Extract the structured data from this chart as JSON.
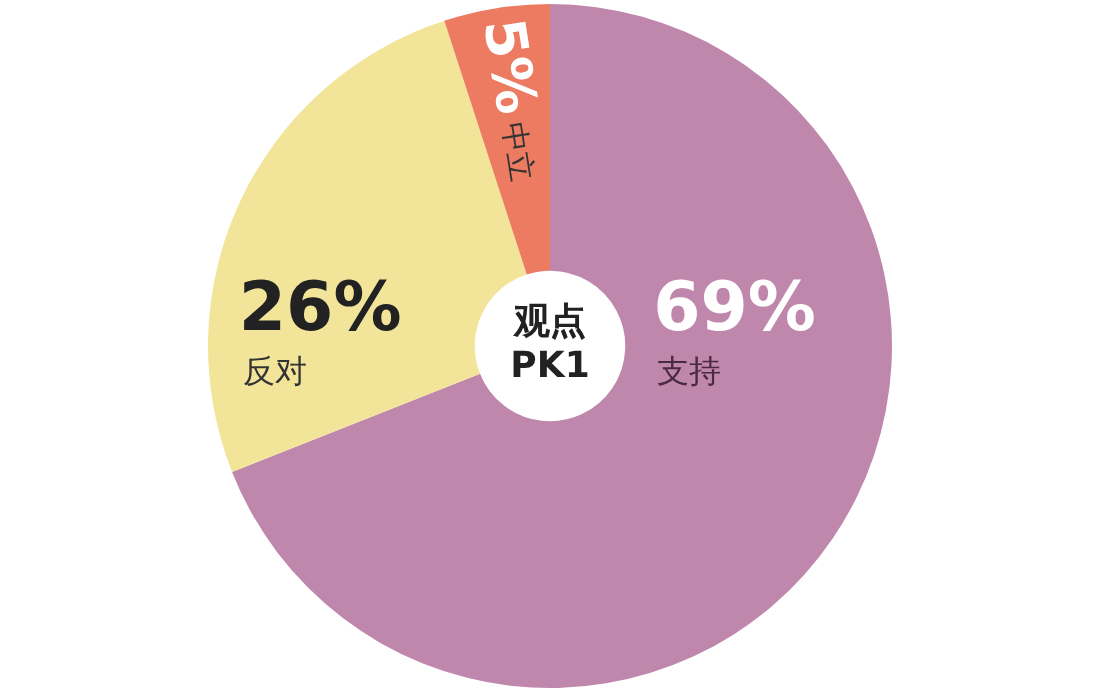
{
  "chart_data": {
    "type": "donut",
    "title": "观点\nPK1",
    "categories": [
      "支持",
      "反对",
      "中立"
    ],
    "values": [
      69,
      26,
      5
    ],
    "value_labels": [
      "69%",
      "26%",
      "5%"
    ],
    "colors": [
      "#c087ad",
      "#f2e59a",
      "#ec7b62"
    ],
    "legend": false
  }
}
